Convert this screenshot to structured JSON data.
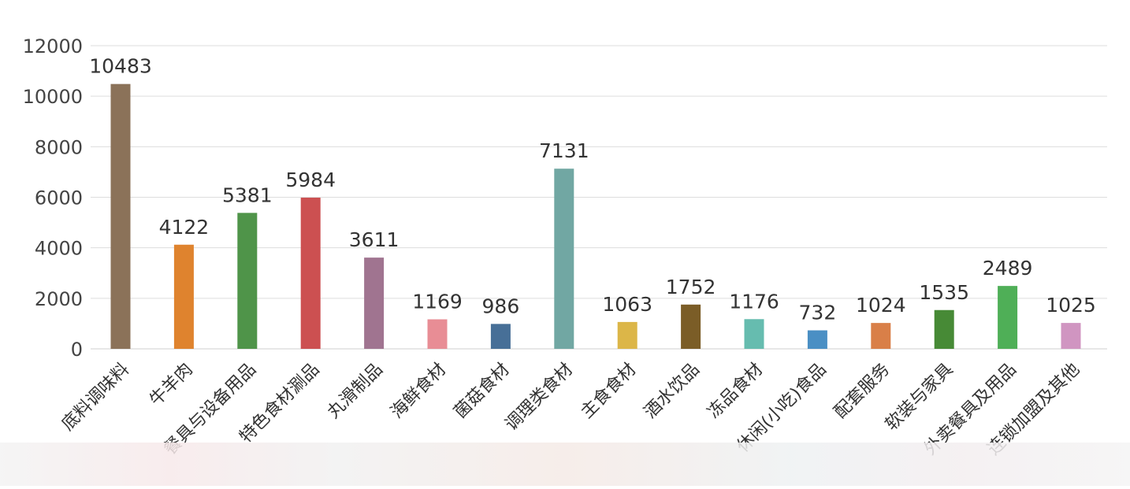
{
  "chart_data": {
    "type": "bar",
    "title": "",
    "xlabel": "",
    "ylabel": "",
    "ylim": [
      0,
      12000
    ],
    "yticks": [
      0,
      2000,
      4000,
      6000,
      8000,
      10000,
      12000
    ],
    "grid": true,
    "legend": "none",
    "categories": [
      "底料调味料",
      "牛羊肉",
      "餐具与设备用品",
      "特色食材涮品",
      "丸滑制品",
      "海鲜食材",
      "菌菇食材",
      "调理类食材",
      "主食食材",
      "酒水饮品",
      "冻品食材",
      "休闲(小吃)食品",
      "配套服务",
      "软装与家具",
      "外卖餐具及用品",
      "连锁加盟及其他"
    ],
    "values": [
      10483,
      4122,
      5381,
      5984,
      3611,
      1169,
      986,
      7131,
      1063,
      1752,
      1176,
      732,
      1024,
      1535,
      2489,
      1025
    ],
    "colors": [
      "#8b7259",
      "#df832e",
      "#4f9449",
      "#cc5051",
      "#a07490",
      "#e88d95",
      "#476f97",
      "#71a7a3",
      "#dcb648",
      "#7b5d27",
      "#66bcaf",
      "#4a8fc4",
      "#d97f48",
      "#478a36",
      "#4faf57",
      "#d095c1"
    ]
  }
}
